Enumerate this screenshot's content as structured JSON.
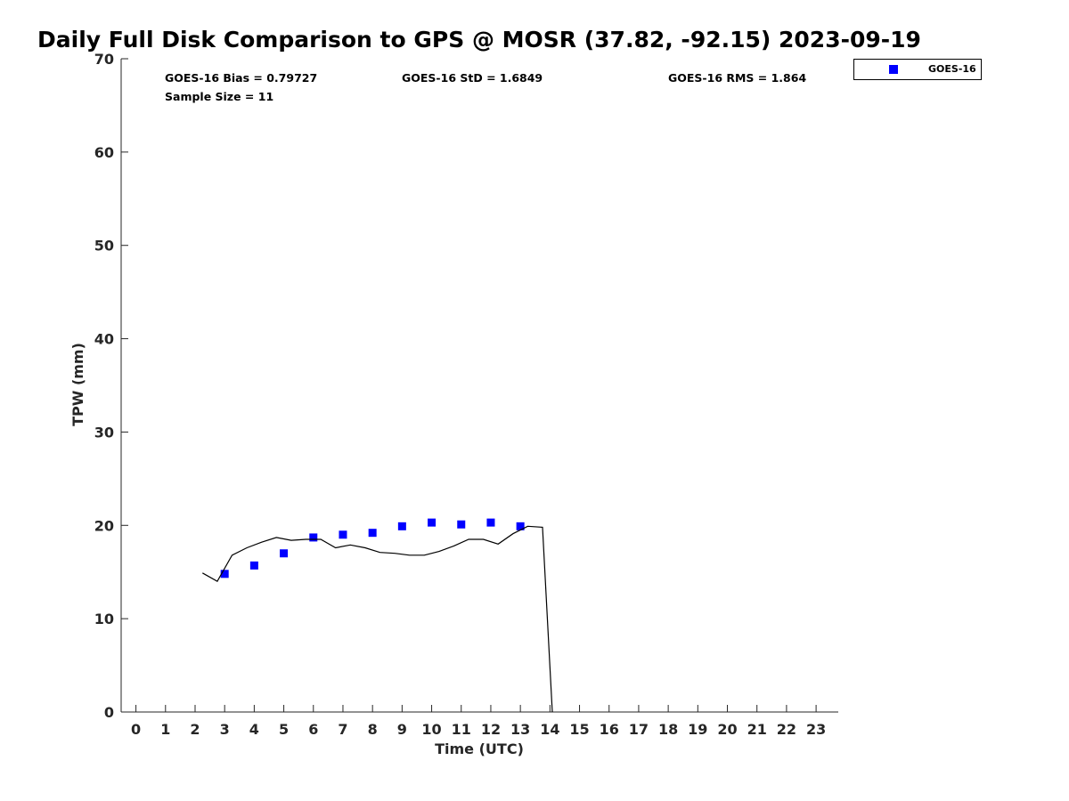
{
  "chart_data": {
    "type": "scatter",
    "title": "Daily Full Disk Comparison to GPS @ MOSR (37.82, -92.15) 2023-09-19",
    "xlabel": "Time (UTC)",
    "ylabel": "TPW (mm)",
    "xlim": [
      -0.5,
      23.75
    ],
    "ylim": [
      0,
      70
    ],
    "x_ticks": [
      0,
      1,
      2,
      3,
      4,
      5,
      6,
      7,
      8,
      9,
      10,
      11,
      12,
      13,
      14,
      15,
      16,
      17,
      18,
      19,
      20,
      21,
      22,
      23
    ],
    "y_ticks": [
      0,
      10,
      20,
      30,
      40,
      50,
      60,
      70
    ],
    "grid": false,
    "legend_position": "top-right",
    "stats": {
      "bias": "GOES-16 Bias = 0.79727",
      "std": "GOES-16 StD = 1.6849",
      "rms": "GOES-16 RMS = 1.864",
      "sample": "Sample Size = 11"
    },
    "series": [
      {
        "name": "GOES-16",
        "kind": "scatter",
        "marker": "square",
        "color": "#0000ff",
        "x": [
          3,
          4,
          5,
          6,
          7,
          8,
          9,
          10,
          11,
          12,
          13
        ],
        "y": [
          14.8,
          15.7,
          17.0,
          18.7,
          19.0,
          19.2,
          19.9,
          20.3,
          20.1,
          20.3,
          19.9
        ]
      },
      {
        "kind": "line",
        "color": "#000000",
        "x": [
          2.25,
          2.75,
          3.25,
          3.75,
          4.25,
          4.75,
          5.25,
          5.75,
          6.25,
          6.75,
          7.25,
          7.75,
          8.25,
          8.75,
          9.25,
          9.75,
          10.25,
          10.75,
          11.25,
          11.75,
          12.25,
          12.75,
          13.25,
          13.75,
          14.08
        ],
        "y": [
          14.9,
          14.0,
          16.8,
          17.6,
          18.2,
          18.7,
          18.4,
          18.5,
          18.5,
          17.6,
          17.9,
          17.6,
          17.1,
          17.0,
          16.8,
          16.8,
          17.2,
          17.8,
          18.5,
          18.5,
          18.0,
          19.1,
          19.9,
          19.8,
          0
        ]
      }
    ]
  }
}
